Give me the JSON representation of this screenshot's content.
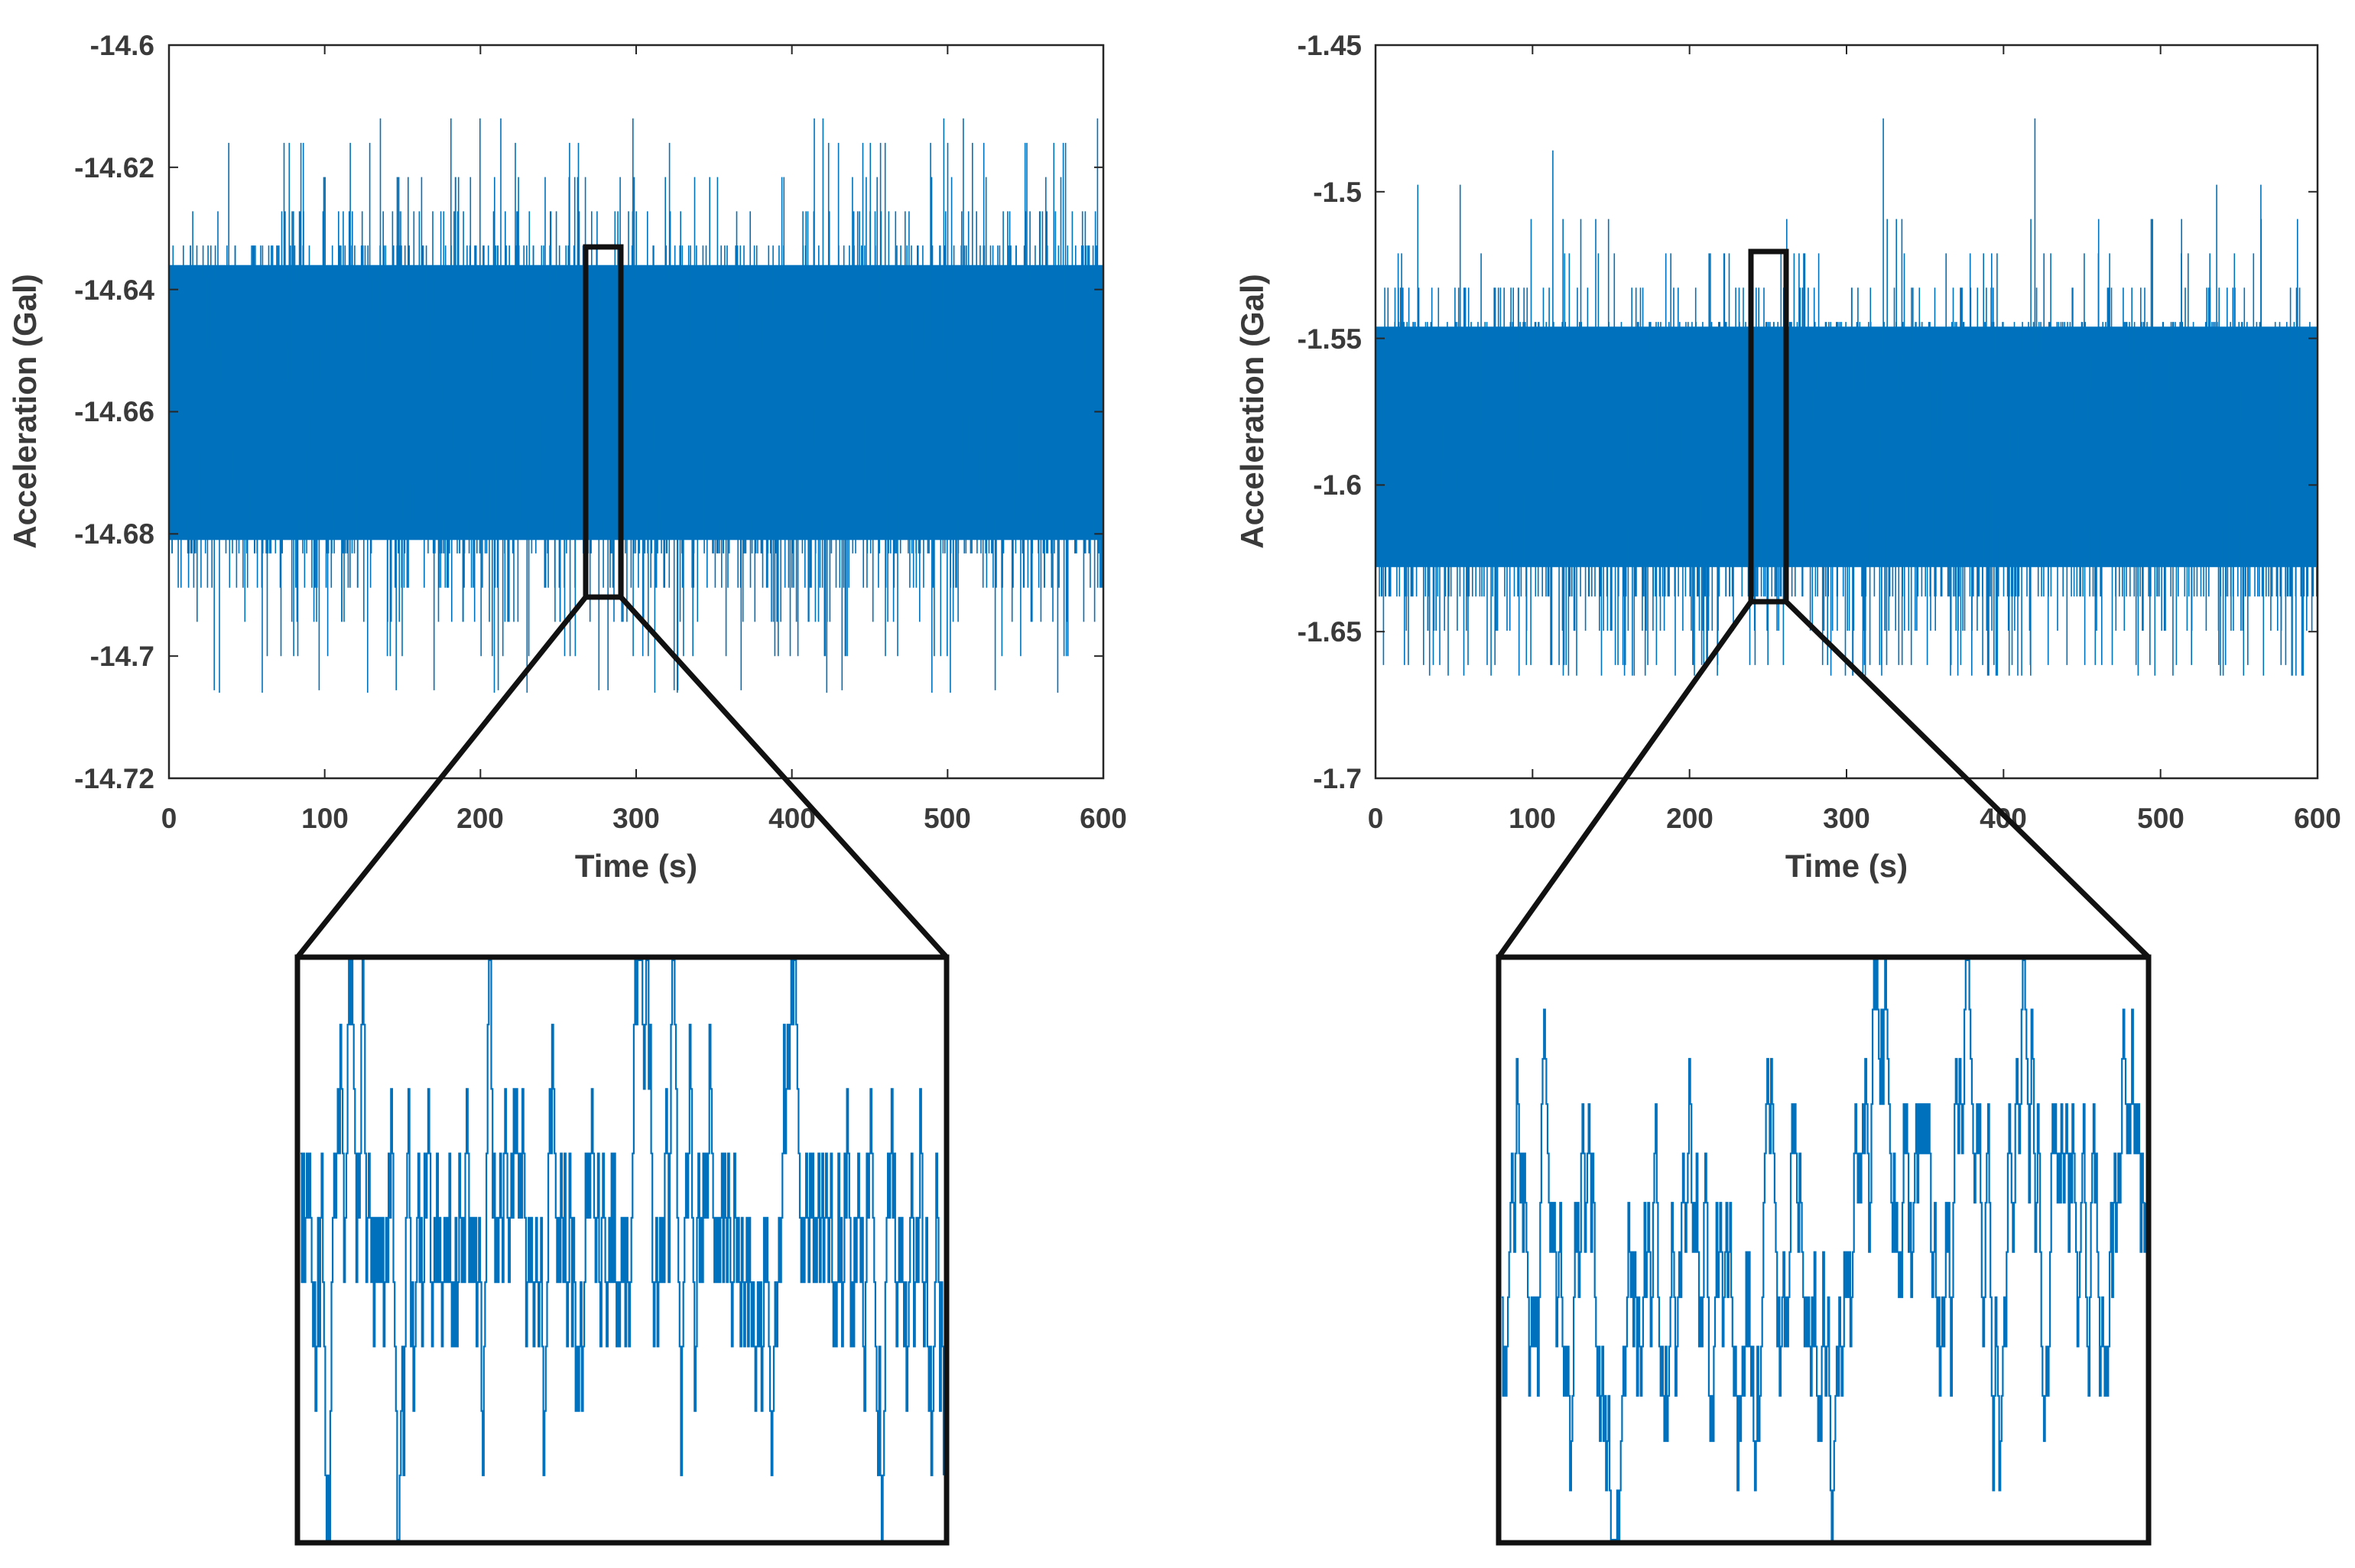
{
  "chart_data": [
    {
      "id": "left",
      "type": "line",
      "title": "",
      "xlabel": "Time (s)",
      "ylabel": "Acceleration (Gal)",
      "xlim": [
        0,
        600
      ],
      "ylim": [
        -14.72,
        -14.6
      ],
      "xticks": [
        0,
        100,
        200,
        300,
        400,
        500,
        600
      ],
      "xtick_labels": [
        "0",
        "100",
        "200",
        "300",
        "400",
        "500",
        "600"
      ],
      "yticks": [
        -14.6,
        -14.62,
        -14.64,
        -14.66,
        -14.68,
        -14.7,
        -14.72
      ],
      "ytick_labels": [
        "-14.6",
        "-14.62",
        "-14.64",
        "-14.66",
        "-14.68",
        "-14.7",
        "-14.72"
      ],
      "series": [
        {
          "name": "acceleration",
          "color": "#0072BD",
          "description_stats": {
            "mean": -14.659,
            "dense_band": [
              -14.681,
              -14.636
            ],
            "min": -14.706,
            "max": -14.612,
            "quantization_step": 0.0056
          }
        }
      ],
      "zoom_window": {
        "t_range": [
          268,
          290
        ],
        "y_range": [
          -14.69,
          -14.634
        ]
      },
      "zoom_inset": {
        "description": "Magnified view of the boxed interval",
        "levels": [
          -14.69,
          -14.684,
          -14.678,
          -14.672,
          -14.666,
          -14.66,
          -14.654,
          -14.648,
          -14.642,
          -14.636
        ]
      }
    },
    {
      "id": "right",
      "type": "line",
      "title": "",
      "xlabel": "Time (s)",
      "ylabel": "Acceleration (Gal)",
      "xlim": [
        0,
        600
      ],
      "ylim": [
        -1.7,
        -1.45
      ],
      "xticks": [
        0,
        100,
        200,
        300,
        400,
        500,
        600
      ],
      "xtick_labels": [
        "0",
        "100",
        "200",
        "300",
        "400",
        "500",
        "600"
      ],
      "yticks": [
        -1.45,
        -1.5,
        -1.55,
        -1.6,
        -1.65,
        -1.7
      ],
      "ytick_labels": [
        "-1.45",
        "-1.5",
        "-1.55",
        "-1.6",
        "-1.65",
        "-1.7"
      ],
      "series": [
        {
          "name": "acceleration",
          "color": "#0072BD",
          "description_stats": {
            "mean": -1.594,
            "dense_band": [
              -1.628,
              -1.546
            ],
            "min": -1.665,
            "max": -1.475,
            "quantization_step": 0.0117
          }
        }
      ],
      "zoom_window": {
        "t_range": [
          240,
          262
        ],
        "y_range": [
          -1.64,
          -1.521
        ]
      },
      "zoom_inset": {
        "description": "Magnified view of the boxed interval",
        "levels": [
          -1.662,
          -1.65,
          -1.638,
          -1.627,
          -1.615,
          -1.603,
          -1.592,
          -1.58,
          -1.568,
          -1.556,
          -1.545,
          -1.533,
          -1.521
        ]
      }
    }
  ]
}
